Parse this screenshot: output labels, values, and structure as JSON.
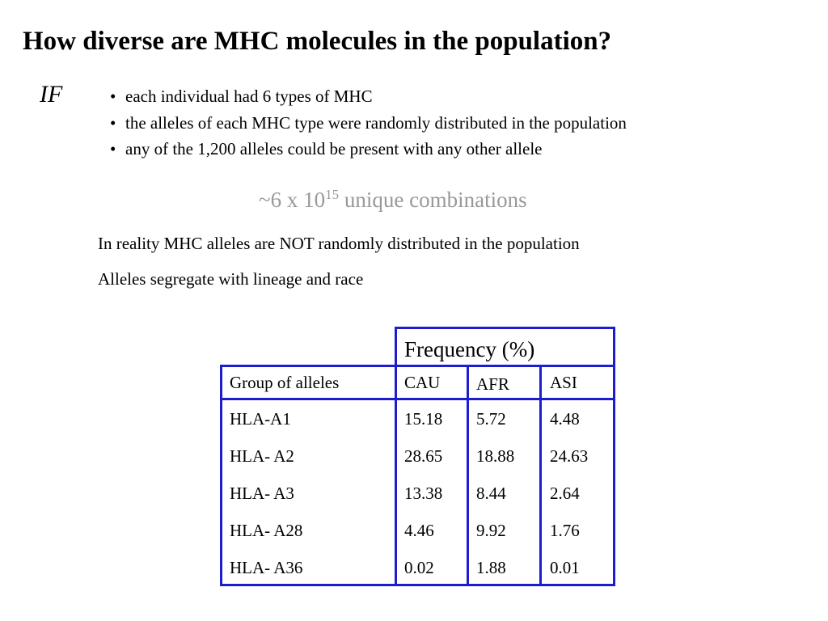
{
  "title": "How diverse are MHC molecules in the population?",
  "if_label": "IF",
  "bullets": [
    "each individual had 6 types of MHC",
    "the alleles of each MHC type were randomly distributed in the population",
    "any of the 1,200 alleles could be present with any other allele"
  ],
  "bullet_glyph": "•",
  "combinations": {
    "prefix": "~6 x 10",
    "exponent": "15",
    "suffix": " unique combinations"
  },
  "notes": [
    "In reality MHC alleles are NOT randomly distributed in the population",
    "Alleles segregate with lineage and race"
  ],
  "table": {
    "frequency_header": "Frequency (%)",
    "columns": [
      "Group of alleles",
      "CAU",
      "AFR",
      "ASI"
    ],
    "rows": [
      [
        "HLA-A1",
        "15.18",
        "5.72",
        "4.48"
      ],
      [
        "HLA- A2",
        "28.65",
        "18.88",
        "24.63"
      ],
      [
        "HLA- A3",
        "13.38",
        "8.44",
        "2.64"
      ],
      [
        "HLA- A28",
        "4.46",
        "9.92",
        "1.76"
      ],
      [
        "HLA- A36",
        "0.02",
        "1.88",
        "0.01"
      ]
    ],
    "border_color": "#1c1cd0"
  }
}
